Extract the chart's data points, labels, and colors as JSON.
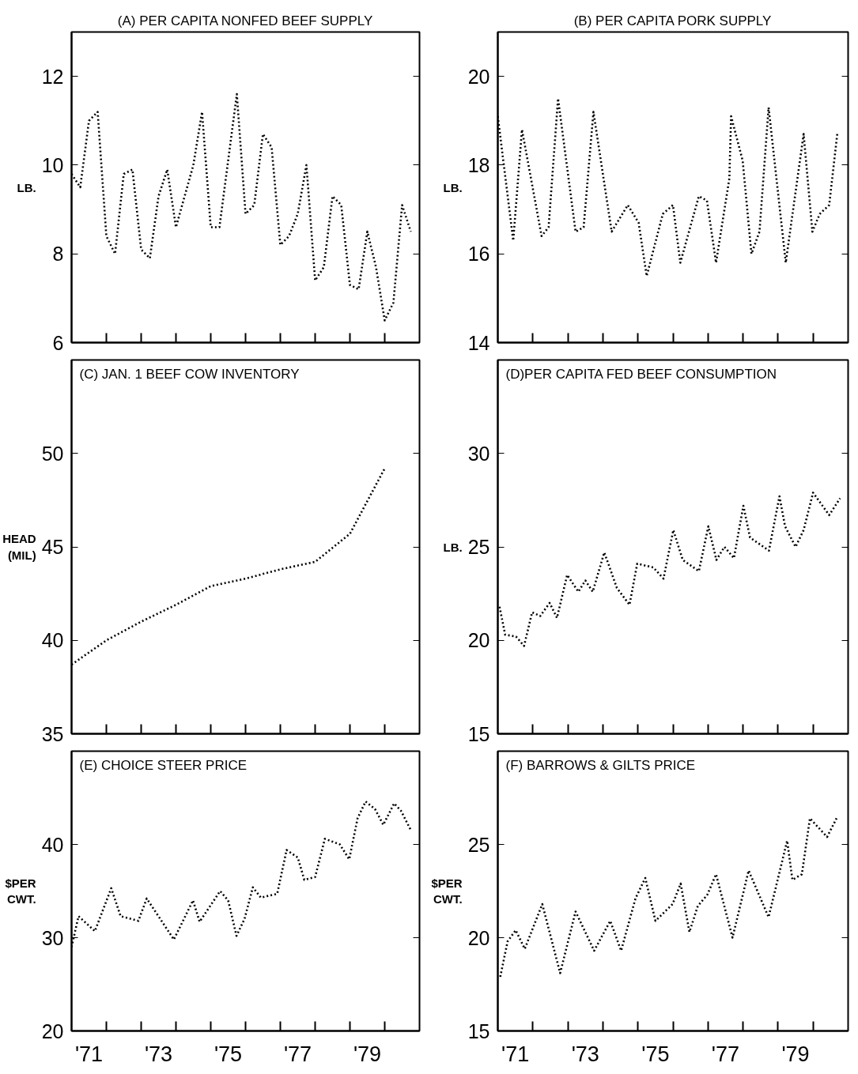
{
  "chart_data": [
    {
      "type": "line",
      "title": "(A) PER CAPITA NONFED BEEF SUPPLY",
      "ylabel": "LB.",
      "line_style": "dotted",
      "tick_labels": "y",
      "xlim": [
        1970.5,
        1980.5
      ],
      "ylim": [
        6,
        13
      ],
      "yticks": [
        6,
        8,
        10,
        12
      ],
      "xticks": [
        {
          "value": 1971.5,
          "label": null
        },
        {
          "value": 1972.5,
          "label": null
        },
        {
          "value": 1973.5,
          "label": null
        },
        {
          "value": 1974.5,
          "label": null
        },
        {
          "value": 1975.5,
          "label": null
        },
        {
          "value": 1976.5,
          "label": null
        },
        {
          "value": 1977.5,
          "label": null
        },
        {
          "value": 1978.5,
          "label": null
        },
        {
          "value": 1979.5,
          "label": null
        }
      ],
      "x": [
        1970.5,
        1970.75,
        1971,
        1971.25,
        1971.5,
        1971.75,
        1972,
        1972.25,
        1972.5,
        1972.75,
        1973,
        1973.25,
        1973.5,
        1973.75,
        1974,
        1974.25,
        1974.5,
        1974.75,
        1975,
        1975.25,
        1975.5,
        1975.75,
        1976,
        1976.25,
        1976.5,
        1976.75,
        1977,
        1977.25,
        1977.5,
        1977.75,
        1978,
        1978.25,
        1978.5,
        1978.75,
        1979,
        1979.25,
        1979.5,
        1979.75,
        1980,
        1980.25
      ],
      "series": [
        {
          "color": "#000000",
          "values": [
            9.8,
            9.5,
            11.0,
            11.2,
            8.4,
            8.0,
            9.8,
            9.9,
            8.1,
            7.9,
            9.3,
            9.9,
            8.6,
            9.3,
            10.0,
            11.2,
            8.6,
            8.6,
            10.1,
            11.6,
            8.9,
            9.1,
            10.7,
            10.4,
            8.2,
            8.4,
            8.9,
            10.0,
            7.4,
            7.7,
            9.3,
            9.1,
            7.3,
            7.2,
            8.5,
            7.7,
            6.5,
            6.9,
            9.1,
            8.5
          ]
        }
      ]
    },
    {
      "type": "line",
      "title": "(B) PER CAPITA PORK SUPPLY",
      "ylabel": "LB.",
      "line_style": "dotted",
      "tick_labels": "y",
      "xlim": [
        1970.5,
        1980.5
      ],
      "ylim": [
        14,
        21
      ],
      "yticks": [
        14,
        16,
        18,
        20
      ],
      "xticks": [
        {
          "value": 1971.5,
          "label": null
        },
        {
          "value": 1972.5,
          "label": null
        },
        {
          "value": 1973.5,
          "label": null
        },
        {
          "value": 1974.5,
          "label": null
        },
        {
          "value": 1975.5,
          "label": null
        },
        {
          "value": 1976.5,
          "label": null
        },
        {
          "value": 1977.5,
          "label": null
        },
        {
          "value": 1978.5,
          "label": null
        },
        {
          "value": 1979.5,
          "label": null
        }
      ],
      "x": [
        1970.5,
        1970.94,
        1971.19,
        1971.75,
        1971.95,
        1972.22,
        1972.72,
        1972.95,
        1973.23,
        1973.75,
        1974.21,
        1974.52,
        1974.75,
        1975.21,
        1975.5,
        1975.71,
        1976.24,
        1976.47,
        1976.73,
        1977.11,
        1977.16,
        1977.49,
        1977.74,
        1977.97,
        1978.23,
        1978.72,
        1979.23,
        1979.48,
        1979.69,
        1979.96,
        1980.19
      ],
      "series": [
        {
          "color": "#000000",
          "values": [
            19.1,
            16.3,
            18.8,
            16.4,
            16.6,
            19.5,
            16.5,
            16.6,
            19.2,
            16.5,
            17.1,
            16.7,
            15.5,
            16.9,
            17.1,
            15.8,
            17.3,
            17.2,
            15.8,
            17.7,
            19.1,
            18.1,
            16.0,
            16.5,
            19.3,
            15.8,
            18.7,
            16.5,
            16.9,
            17.1,
            18.7
          ]
        }
      ]
    },
    {
      "type": "line",
      "title": "(C) JAN. 1 BEEF COW INVENTORY",
      "ylabel": "HEAD (MIL)",
      "line_style": "dotted",
      "tick_labels": "y",
      "xlim": [
        1970.5,
        1980.5
      ],
      "ylim": [
        35,
        55
      ],
      "yticks": [
        35,
        40,
        45,
        50
      ],
      "xticks": [
        {
          "value": 1971.5,
          "label": null
        },
        {
          "value": 1972.5,
          "label": null
        },
        {
          "value": 1973.5,
          "label": null
        },
        {
          "value": 1974.5,
          "label": null
        },
        {
          "value": 1975.5,
          "label": null
        },
        {
          "value": 1976.5,
          "label": null
        },
        {
          "value": 1977.5,
          "label": null
        },
        {
          "value": 1978.5,
          "label": null
        },
        {
          "value": 1979.5,
          "label": null
        }
      ],
      "x": [
        1970.5,
        1971.5,
        1972.5,
        1973.5,
        1974.5,
        1975.5,
        1976.5,
        1977.5,
        1978.5,
        1979.5
      ],
      "series": [
        {
          "color": "#000000",
          "values": [
            38.7,
            40.0,
            41.0,
            41.9,
            42.9,
            43.3,
            43.8,
            44.2,
            45.7,
            49.2
          ]
        }
      ]
    },
    {
      "type": "line",
      "title": "(D)PER CAPITA FED BEEF CONSUMPTION",
      "ylabel": "LB.",
      "line_style": "dotted",
      "tick_labels": "y",
      "xlim": [
        1970.5,
        1980.5
      ],
      "ylim": [
        15,
        35
      ],
      "yticks": [
        15,
        20,
        25,
        30
      ],
      "xticks": [
        {
          "value": 1971.5,
          "label": null
        },
        {
          "value": 1972.5,
          "label": null
        },
        {
          "value": 1973.5,
          "label": null
        },
        {
          "value": 1974.5,
          "label": null
        },
        {
          "value": 1975.5,
          "label": null
        },
        {
          "value": 1976.5,
          "label": null
        },
        {
          "value": 1977.5,
          "label": null
        },
        {
          "value": 1978.5,
          "label": null
        },
        {
          "value": 1979.5,
          "label": null
        }
      ],
      "x": [
        1970.55,
        1970.71,
        1971.02,
        1971.25,
        1971.48,
        1971.71,
        1971.98,
        1972.19,
        1972.48,
        1972.8,
        1973.0,
        1973.21,
        1973.54,
        1973.9,
        1974.26,
        1974.48,
        1974.94,
        1975.23,
        1975.51,
        1975.78,
        1976.24,
        1976.51,
        1976.74,
        1976.97,
        1977.24,
        1977.51,
        1977.7,
        1978.24,
        1978.54,
        1978.7,
        1979.0,
        1979.23,
        1979.5,
        1979.96,
        1980.27
      ],
      "series": [
        {
          "color": "#000000",
          "values": [
            21.8,
            20.3,
            20.2,
            19.7,
            21.5,
            21.3,
            22.0,
            21.2,
            23.5,
            22.6,
            23.2,
            22.6,
            24.7,
            22.8,
            21.9,
            24.1,
            23.9,
            23.3,
            25.9,
            24.3,
            23.7,
            26.1,
            24.3,
            25.0,
            24.4,
            27.2,
            25.5,
            24.8,
            27.7,
            26.1,
            25.0,
            25.9,
            27.9,
            26.7,
            27.6
          ]
        }
      ]
    },
    {
      "type": "line",
      "title": "(E) CHOICE STEER PRICE",
      "ylabel": "$PER CWT.",
      "line_style": "dotted",
      "xlim": [
        1970.5,
        1980.5
      ],
      "ylim": [
        20,
        50
      ],
      "yticks": [
        20,
        30,
        40
      ],
      "xticks": [
        {
          "value": 1971,
          "label": "'71"
        },
        {
          "value": 1971.5,
          "label": null
        },
        {
          "value": 1972.5,
          "label": null
        },
        {
          "value": 1973,
          "label": "'73"
        },
        {
          "value": 1973.5,
          "label": null
        },
        {
          "value": 1974.5,
          "label": null
        },
        {
          "value": 1975,
          "label": "'75"
        },
        {
          "value": 1975.5,
          "label": null
        },
        {
          "value": 1976.5,
          "label": null
        },
        {
          "value": 1977,
          "label": "'77"
        },
        {
          "value": 1977.5,
          "label": null
        },
        {
          "value": 1978.5,
          "label": null
        },
        {
          "value": 1979,
          "label": "'79"
        },
        {
          "value": 1979.5,
          "label": null
        }
      ],
      "x": [
        1970.5,
        1970.7,
        1971.17,
        1971.64,
        1971.91,
        1972.42,
        1972.66,
        1973.44,
        1973.99,
        1974.18,
        1974.77,
        1975.0,
        1975.24,
        1975.47,
        1975.71,
        1975.94,
        1976.41,
        1976.68,
        1977.0,
        1977.19,
        1977.5,
        1977.78,
        1978.21,
        1978.48,
        1978.72,
        1978.95,
        1979.22,
        1979.46,
        1979.77,
        1979.97,
        1980.24
      ],
      "series": [
        {
          "color": "#000000",
          "values": [
            29,
            32.3,
            30.7,
            35.3,
            32.3,
            31.8,
            34.2,
            29.8,
            34.0,
            31.7,
            35.0,
            34.0,
            30.2,
            32.0,
            35.4,
            34.3,
            34.7,
            39.4,
            38.6,
            36.2,
            36.5,
            40.6,
            40.0,
            38.4,
            42.8,
            44.6,
            43.8,
            42.1,
            44.4,
            43.6,
            41.6
          ]
        }
      ]
    },
    {
      "type": "line",
      "title": "(F) BARROWS & GILTS PRICE",
      "ylabel": "$PER CWT.",
      "line_style": "dotted",
      "xlim": [
        1970.5,
        1980.5
      ],
      "ylim": [
        15,
        30
      ],
      "yticks": [
        15,
        20,
        25
      ],
      "xticks": [
        {
          "value": 1971,
          "label": "'71"
        },
        {
          "value": 1971.5,
          "label": null
        },
        {
          "value": 1972.5,
          "label": null
        },
        {
          "value": 1973,
          "label": "'73"
        },
        {
          "value": 1973.5,
          "label": null
        },
        {
          "value": 1974.5,
          "label": null
        },
        {
          "value": 1975,
          "label": "'75"
        },
        {
          "value": 1975.5,
          "label": null
        },
        {
          "value": 1976.5,
          "label": null
        },
        {
          "value": 1977,
          "label": "'77"
        },
        {
          "value": 1977.5,
          "label": null
        },
        {
          "value": 1978.5,
          "label": null
        },
        {
          "value": 1979,
          "label": "'79"
        },
        {
          "value": 1979.5,
          "label": null
        }
      ],
      "x": [
        1970.57,
        1970.78,
        1971.01,
        1971.27,
        1971.77,
        1972.28,
        1972.72,
        1973.25,
        1973.71,
        1974.02,
        1974.43,
        1974.71,
        1975.0,
        1975.49,
        1975.72,
        1975.97,
        1976.21,
        1976.48,
        1976.73,
        1977.2,
        1977.66,
        1978.23,
        1978.76,
        1978.91,
        1979.18,
        1979.41,
        1979.9,
        1980.17
      ],
      "series": [
        {
          "color": "#000000",
          "values": [
            17.9,
            19.8,
            20.4,
            19.4,
            21.8,
            18.1,
            21.4,
            19.3,
            20.9,
            19.3,
            22.1,
            23.2,
            20.9,
            21.8,
            22.9,
            20.3,
            21.7,
            22.3,
            23.4,
            20.0,
            23.6,
            21.1,
            25.2,
            23.1,
            23.4,
            26.4,
            25.4,
            26.4
          ]
        }
      ]
    }
  ]
}
